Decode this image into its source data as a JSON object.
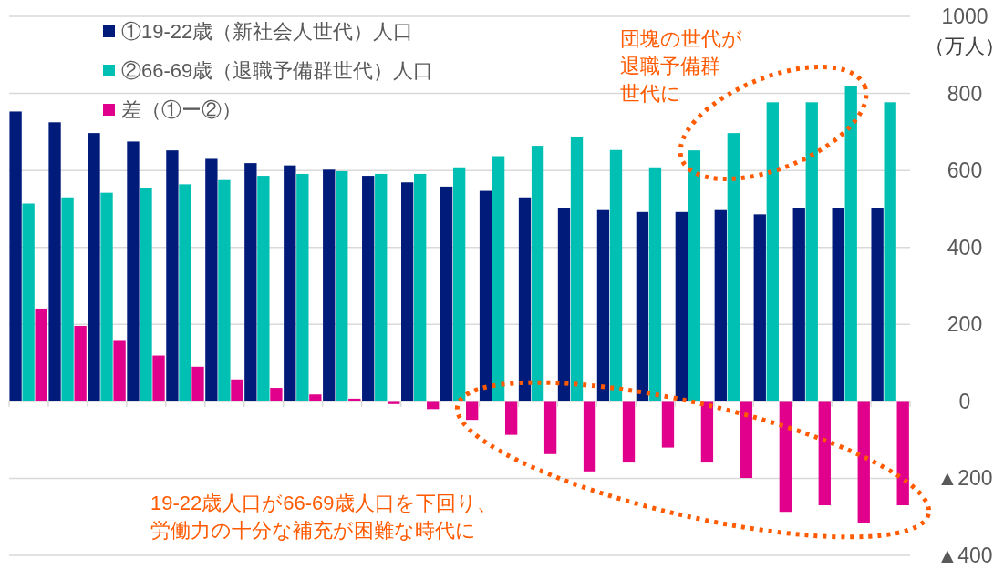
{
  "chart_data": {
    "type": "bar",
    "ylabel": "（万人）",
    "categories": [
      null,
      null,
      null,
      null,
      null,
      null,
      null,
      null,
      null,
      null,
      null,
      null,
      null,
      null,
      null,
      null,
      null,
      null,
      null,
      null,
      null,
      null,
      null
    ],
    "series": [
      {
        "name": "①19-22歳（新社会人世代）人口",
        "color": "#001b7a",
        "values": [
          753,
          725,
          697,
          675,
          652,
          630,
          619,
          613,
          602,
          586,
          569,
          558,
          547,
          530,
          503,
          497,
          492,
          492,
          497,
          486,
          503,
          503,
          503
        ]
      },
      {
        "name": "②66-69歳（退職予備群世代）人口",
        "color": "#00c0b4",
        "values": [
          514,
          530,
          542,
          553,
          564,
          575,
          586,
          591,
          598,
          591,
          591,
          608,
          637,
          664,
          686,
          653,
          608,
          652,
          697,
          777,
          777,
          820,
          777
        ]
      },
      {
        "name": "差（①ー②）",
        "color": "#e0008c",
        "values": [
          241,
          196,
          157,
          119,
          90,
          57,
          35,
          18,
          7,
          -7,
          -20,
          -48,
          -87,
          -137,
          -182,
          -159,
          -120,
          -159,
          -199,
          -287,
          -270,
          -315,
          -270
        ]
      }
    ],
    "ylim": [
      -400,
      1000
    ],
    "yticks": [
      {
        "value": -400,
        "label": "▲400"
      },
      {
        "value": -200,
        "label": "▲200"
      },
      0,
      200,
      400,
      600,
      800,
      1000
    ],
    "grid": "y",
    "legend": "top left",
    "annotations": [
      "団塊の世代が退職予備群世代に",
      "19-22歳人口が66-69歳人口を下回り、労働力の十分な補充が困難な時代に"
    ]
  }
}
